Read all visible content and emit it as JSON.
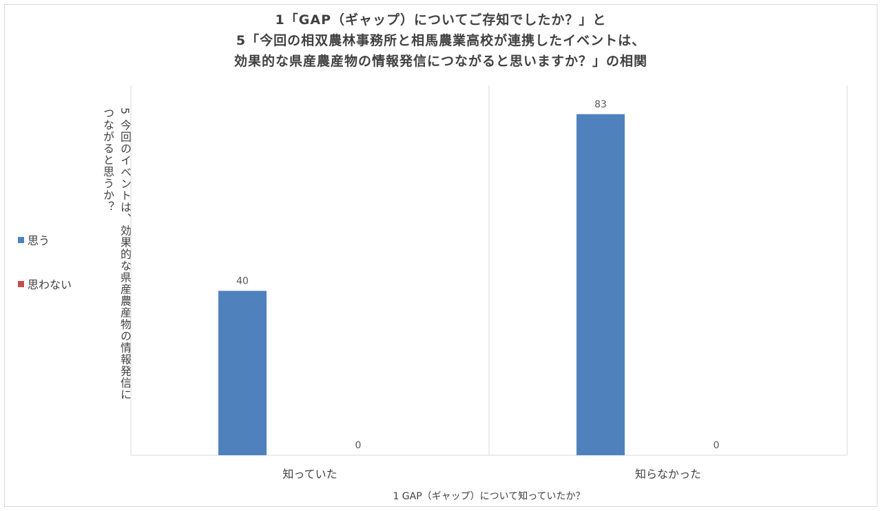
{
  "chart_data": {
    "type": "bar",
    "title_lines": [
      "1「GAP（ギャップ）についてご存知でしたか？」と",
      "5「今回の相双農林事務所と相馬農業高校が連携したイベントは、",
      "効果的な県産農産物の情報発信につながると思いますか？」の相関"
    ],
    "xlabel": "1 GAP（ギャップ）について知っていたか？",
    "ylabel_lines": [
      "5 今回のイベントは、効果的な県産農産物の情報発信に",
      "つながると思うか？"
    ],
    "categories": [
      "知っていた",
      "知らなかった"
    ],
    "series": [
      {
        "name": "思う",
        "values": [
          40,
          83
        ],
        "color": "#4f81bd"
      },
      {
        "name": "思わない",
        "values": [
          0,
          0
        ],
        "color": "#c0504d"
      }
    ],
    "ylim": [
      0,
      90
    ],
    "grid": false,
    "legend_position": "left"
  }
}
